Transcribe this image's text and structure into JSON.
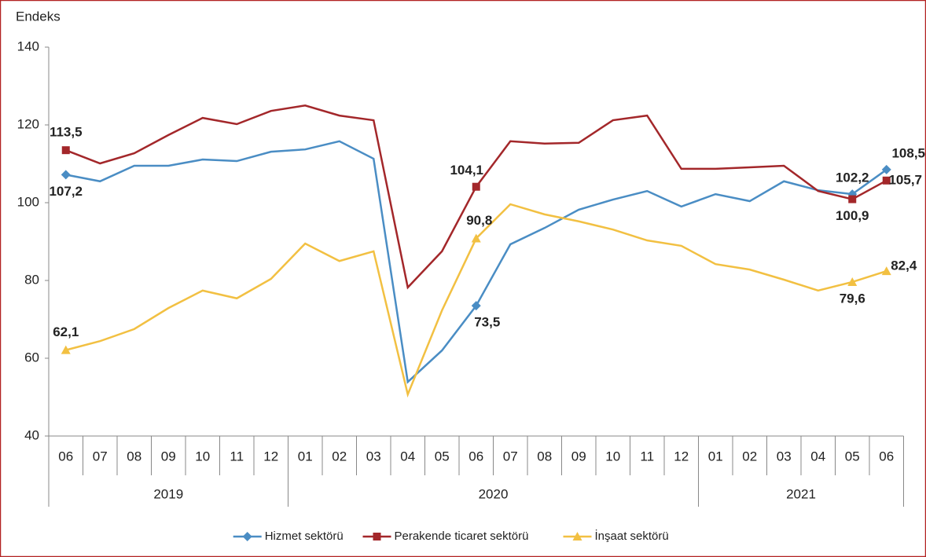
{
  "chart_data": {
    "type": "line",
    "y_axis_label": "Endeks",
    "categories": [
      "06",
      "07",
      "08",
      "09",
      "10",
      "11",
      "12",
      "01",
      "02",
      "03",
      "04",
      "05",
      "06",
      "07",
      "08",
      "09",
      "10",
      "11",
      "12",
      "01",
      "02",
      "03",
      "04",
      "05",
      "06"
    ],
    "year_groups": [
      {
        "label": "2019",
        "categories": 7
      },
      {
        "label": "2020",
        "categories": 12
      },
      {
        "label": "2021",
        "categories": 6
      }
    ],
    "ylim": [
      40,
      140
    ],
    "yticks": [
      40,
      60,
      80,
      100,
      120,
      140
    ],
    "legend": "bottom",
    "series": [
      {
        "name": "Hizmet sektörü",
        "color": "#4a8dc4",
        "marker": "diamond",
        "values": [
          107.2,
          105.5,
          109.5,
          109.5,
          111.1,
          110.7,
          113.1,
          113.7,
          115.8,
          111.3,
          53.9,
          62,
          73.5,
          89.3,
          93.5,
          98.2,
          100.8,
          103,
          99,
          102.2,
          100.4,
          105.5,
          103.2,
          102.2,
          108.5
        ],
        "value_labels": [
          "107,2",
          null,
          null,
          null,
          null,
          null,
          null,
          null,
          null,
          null,
          null,
          null,
          "73,5",
          null,
          null,
          null,
          null,
          null,
          null,
          null,
          null,
          null,
          null,
          "102,2",
          "108,5"
        ]
      },
      {
        "name": "Perakende ticaret sektörü",
        "color": "#a3272a",
        "marker": "square",
        "values": [
          113.5,
          110.1,
          112.7,
          117.4,
          121.8,
          120.2,
          123.6,
          125,
          122.4,
          121.2,
          78.2,
          87.5,
          104.1,
          115.8,
          115.2,
          115.4,
          121.2,
          122.4,
          108.7,
          108.7,
          109.1,
          109.5,
          103,
          100.9,
          105.7
        ],
        "value_labels": [
          "113,5",
          null,
          null,
          null,
          null,
          null,
          null,
          null,
          null,
          null,
          null,
          null,
          "104,1",
          null,
          null,
          null,
          null,
          null,
          null,
          null,
          null,
          null,
          null,
          "100,9",
          "105,7"
        ]
      },
      {
        "name": "İnşaat sektörü",
        "color": "#f2c042",
        "marker": "triangle",
        "values": [
          62.1,
          64.4,
          67.5,
          72.9,
          77.4,
          75.4,
          80.4,
          89.5,
          85,
          87.5,
          50.7,
          72.3,
          90.8,
          99.6,
          97,
          95.2,
          93.1,
          90.3,
          88.9,
          84.2,
          82.8,
          80.2,
          77.4,
          79.6,
          82.4
        ],
        "value_labels": [
          "62,1",
          null,
          null,
          null,
          null,
          null,
          null,
          null,
          null,
          null,
          null,
          null,
          "90,8",
          null,
          null,
          null,
          null,
          null,
          null,
          null,
          null,
          null,
          null,
          "79,6",
          "82,4"
        ]
      }
    ]
  }
}
